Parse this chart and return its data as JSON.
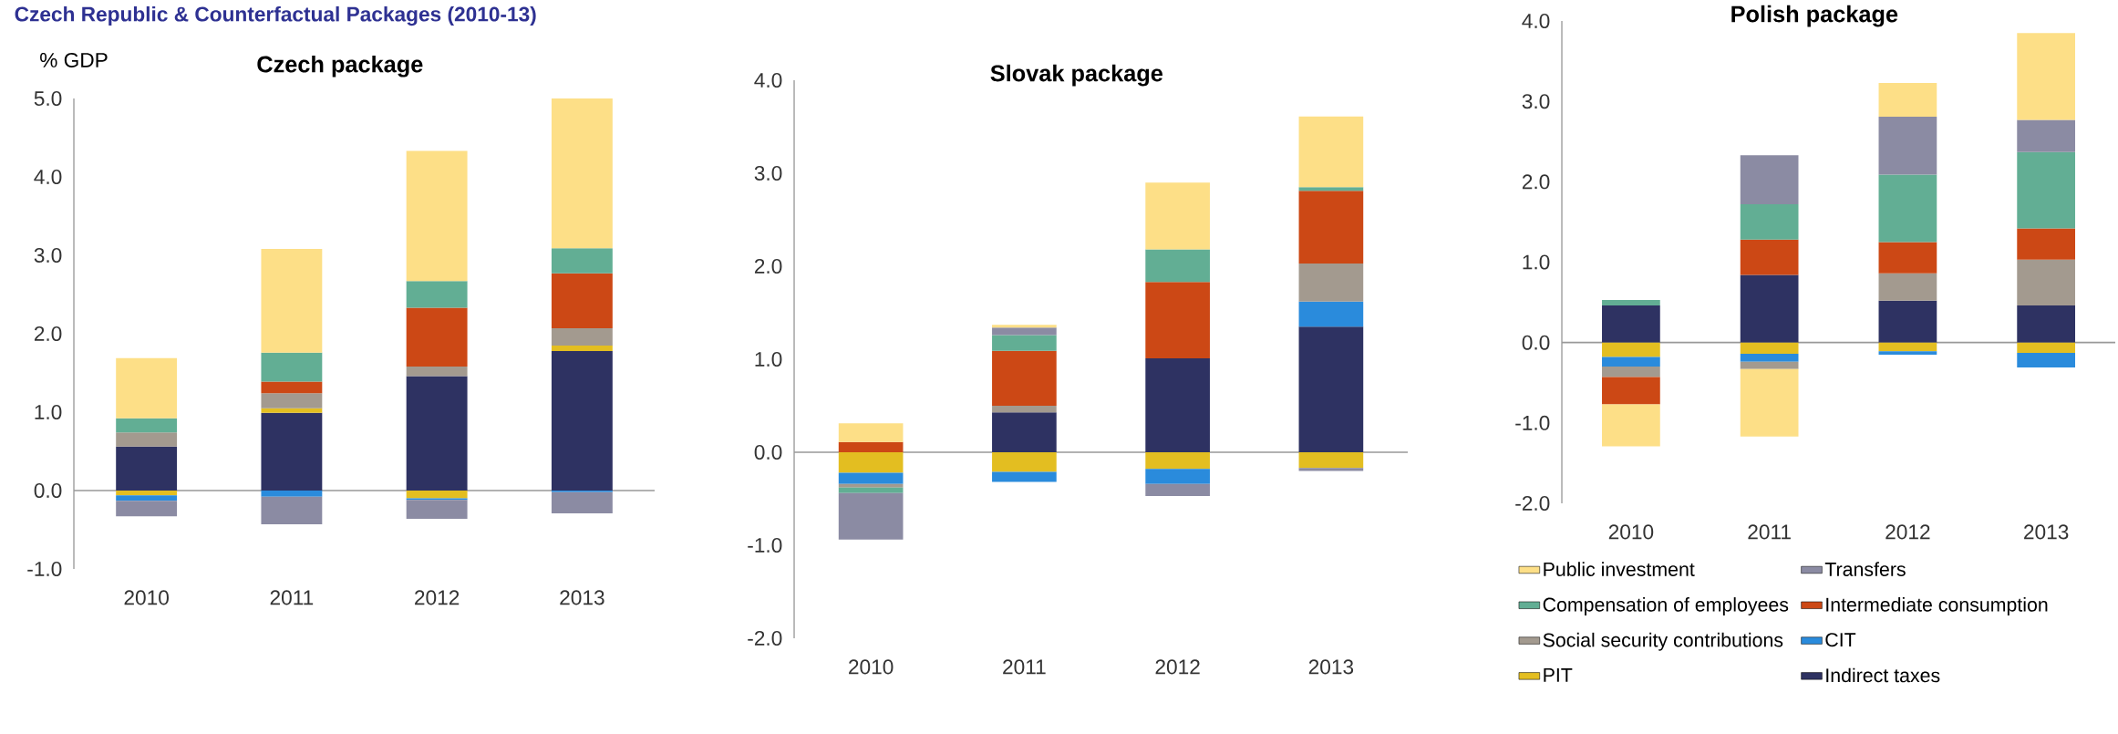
{
  "chart_data": [
    {
      "type": "bar",
      "stacked": true,
      "title": "Czech package",
      "ylabel": "% GDP",
      "annotations": [
        "Czech Republic & Counterfactual Packages (2010-13)"
      ],
      "categories": [
        "2010",
        "2011",
        "2012",
        "2013"
      ],
      "ylim": [
        -1,
        5
      ],
      "yticks": [
        {
          "value": -1,
          "label": "-1.0"
        },
        {
          "value": 0,
          "label": "0.0"
        },
        {
          "value": 1,
          "label": "1.0"
        },
        {
          "value": 2,
          "label": "2.0"
        },
        {
          "value": 3,
          "label": "3.0"
        },
        {
          "value": 4,
          "label": "4.0"
        },
        {
          "value": 5,
          "label": "5.0"
        }
      ],
      "series": [
        {
          "color": "#2e3262",
          "values": [
            0.56,
            0.99,
            1.46,
            1.78
          ]
        },
        {
          "color": "#e3be21",
          "values": [
            -0.06,
            0.06,
            -0.1,
            0.07
          ]
        },
        {
          "color": "#2a8bdc",
          "values": [
            -0.07,
            -0.08,
            -0.02,
            -0.02
          ]
        },
        {
          "color": "#a39a8f",
          "values": [
            0.18,
            0.19,
            0.12,
            0.22
          ]
        },
        {
          "color": "#cc4815",
          "values": [
            null,
            0.15,
            0.75,
            0.7
          ]
        },
        {
          "color": "#62ae94",
          "values": [
            0.18,
            0.37,
            0.34,
            0.32
          ]
        },
        {
          "color": "#8b8ba3",
          "values": [
            -0.2,
            -0.35,
            -0.24,
            -0.27
          ]
        },
        {
          "color": "#fddf87",
          "values": [
            0.77,
            1.32,
            1.66,
            1.91
          ]
        }
      ]
    },
    {
      "type": "bar",
      "stacked": true,
      "title": "Slovak package",
      "categories": [
        "2010",
        "2011",
        "2012",
        "2013"
      ],
      "ylim": [
        -2,
        4
      ],
      "yticks": [
        {
          "value": -2,
          "label": "-2.0"
        },
        {
          "value": -1,
          "label": "-1.0"
        },
        {
          "value": 0,
          "label": "0.0"
        },
        {
          "value": 1,
          "label": "1.0"
        },
        {
          "value": 2,
          "label": "2.0"
        },
        {
          "value": 3,
          "label": "3.0"
        },
        {
          "value": 4,
          "label": "4.0"
        }
      ],
      "series": [
        {
          "color": "#2e3262",
          "values": [
            null,
            0.43,
            1.01,
            1.35
          ]
        },
        {
          "color": "#e3be21",
          "values": [
            -0.22,
            -0.21,
            -0.18,
            -0.17
          ]
        },
        {
          "color": "#2a8bdc",
          "values": [
            -0.12,
            -0.11,
            -0.16,
            0.27
          ]
        },
        {
          "color": "#a39a8f",
          "values": [
            -0.04,
            0.07,
            null,
            0.41
          ]
        },
        {
          "color": "#cc4815",
          "values": [
            0.11,
            0.59,
            0.82,
            0.78
          ]
        },
        {
          "color": "#62ae94",
          "values": [
            -0.06,
            0.17,
            0.35,
            0.04
          ]
        },
        {
          "color": "#8b8ba3",
          "values": [
            -0.5,
            0.08,
            -0.13,
            -0.03
          ]
        },
        {
          "color": "#fddf87",
          "values": [
            0.2,
            0.03,
            0.72,
            0.76
          ]
        }
      ]
    },
    {
      "type": "bar",
      "stacked": true,
      "title": "Polish package",
      "legend": "bottom",
      "categories": [
        "2010",
        "2011",
        "2012",
        "2013"
      ],
      "ylim": [
        -2,
        4
      ],
      "yticks": [
        {
          "value": -2,
          "label": "-2.0"
        },
        {
          "value": -1,
          "label": "-1.0"
        },
        {
          "value": 0,
          "label": "0.0"
        },
        {
          "value": 1,
          "label": "1.0"
        },
        {
          "value": 2,
          "label": "2.0"
        },
        {
          "value": 3,
          "label": "3.0"
        },
        {
          "value": 4,
          "label": "4.0"
        }
      ],
      "series": [
        {
          "name": "Indirect taxes",
          "color": "#2e3262",
          "values": [
            0.46,
            0.84,
            0.52,
            0.46
          ]
        },
        {
          "name": "PIT",
          "color": "#e3be21",
          "values": [
            -0.18,
            -0.14,
            -0.11,
            -0.13
          ]
        },
        {
          "name": "CIT",
          "color": "#2a8bdc",
          "values": [
            -0.12,
            -0.1,
            -0.04,
            -0.18
          ]
        },
        {
          "name": "Social security contributions",
          "color": "#a39a8f",
          "values": [
            -0.13,
            -0.09,
            0.34,
            0.57
          ]
        },
        {
          "name": "Intermediate consumption",
          "color": "#cc4815",
          "values": [
            -0.34,
            0.44,
            0.39,
            0.39
          ]
        },
        {
          "name": "Compensation of employees",
          "color": "#62ae94",
          "values": [
            0.07,
            0.44,
            0.84,
            0.95
          ]
        },
        {
          "name": "Transfers",
          "color": "#8b8ba3",
          "values": [
            null,
            0.61,
            0.72,
            0.4
          ]
        },
        {
          "name": "Public investment",
          "color": "#fddf87",
          "values": [
            -0.52,
            -0.84,
            0.42,
            1.08
          ]
        }
      ]
    }
  ]
}
